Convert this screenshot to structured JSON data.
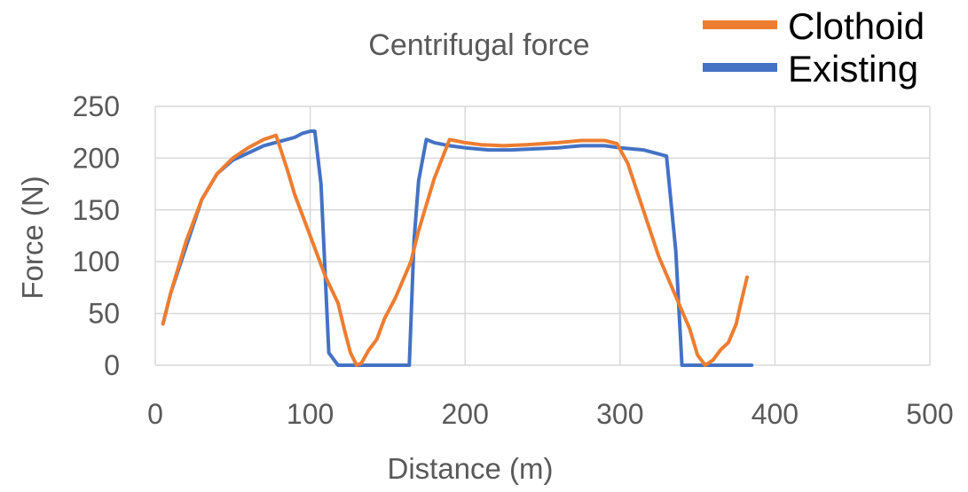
{
  "chart_data": {
    "type": "line",
    "title": "Centrifugal force",
    "xlabel": "Distance (m)",
    "ylabel": "Force (N)",
    "xlim": [
      0,
      500
    ],
    "ylim": [
      0,
      250
    ],
    "xticks": [
      "0",
      "100",
      "200",
      "300",
      "400",
      "500"
    ],
    "yticks": [
      "0",
      "50",
      "100",
      "150",
      "200",
      "250"
    ],
    "grid": true,
    "legend_position": "top-right",
    "series": [
      {
        "name": "Clothoid",
        "color": "#ED7D31",
        "points": [
          [
            5,
            40
          ],
          [
            10,
            70
          ],
          [
            20,
            120
          ],
          [
            30,
            160
          ],
          [
            40,
            185
          ],
          [
            50,
            200
          ],
          [
            60,
            210
          ],
          [
            70,
            218
          ],
          [
            78,
            222
          ],
          [
            85,
            190
          ],
          [
            90,
            165
          ],
          [
            100,
            125
          ],
          [
            110,
            85
          ],
          [
            118,
            60
          ],
          [
            122,
            35
          ],
          [
            126,
            12
          ],
          [
            130,
            0
          ],
          [
            133,
            2
          ],
          [
            138,
            15
          ],
          [
            143,
            25
          ],
          [
            148,
            45
          ],
          [
            155,
            65
          ],
          [
            165,
            100
          ],
          [
            170,
            130
          ],
          [
            180,
            180
          ],
          [
            190,
            218
          ],
          [
            200,
            215
          ],
          [
            210,
            213
          ],
          [
            225,
            212
          ],
          [
            240,
            213
          ],
          [
            260,
            215
          ],
          [
            275,
            217
          ],
          [
            290,
            217
          ],
          [
            298,
            214
          ],
          [
            305,
            195
          ],
          [
            315,
            150
          ],
          [
            325,
            105
          ],
          [
            335,
            70
          ],
          [
            345,
            35
          ],
          [
            350,
            10
          ],
          [
            355,
            0
          ],
          [
            360,
            5
          ],
          [
            365,
            15
          ],
          [
            370,
            22
          ],
          [
            375,
            40
          ],
          [
            378,
            60
          ],
          [
            382,
            85
          ]
        ]
      },
      {
        "name": "Existing",
        "color": "#4472C4",
        "points": [
          [
            5,
            40
          ],
          [
            10,
            70
          ],
          [
            20,
            115
          ],
          [
            30,
            160
          ],
          [
            40,
            185
          ],
          [
            50,
            198
          ],
          [
            60,
            205
          ],
          [
            70,
            212
          ],
          [
            80,
            216
          ],
          [
            90,
            220
          ],
          [
            95,
            224
          ],
          [
            100,
            226
          ],
          [
            103,
            226
          ],
          [
            107,
            175
          ],
          [
            112,
            12
          ],
          [
            118,
            0
          ],
          [
            164,
            0
          ],
          [
            167,
            120
          ],
          [
            170,
            178
          ],
          [
            175,
            218
          ],
          [
            180,
            215
          ],
          [
            190,
            212
          ],
          [
            200,
            210
          ],
          [
            215,
            208
          ],
          [
            230,
            208
          ],
          [
            245,
            209
          ],
          [
            260,
            210
          ],
          [
            275,
            212
          ],
          [
            290,
            212
          ],
          [
            300,
            210
          ],
          [
            315,
            208
          ],
          [
            325,
            204
          ],
          [
            330,
            202
          ],
          [
            336,
            110
          ],
          [
            340,
            0
          ],
          [
            385,
            0
          ]
        ]
      }
    ]
  }
}
